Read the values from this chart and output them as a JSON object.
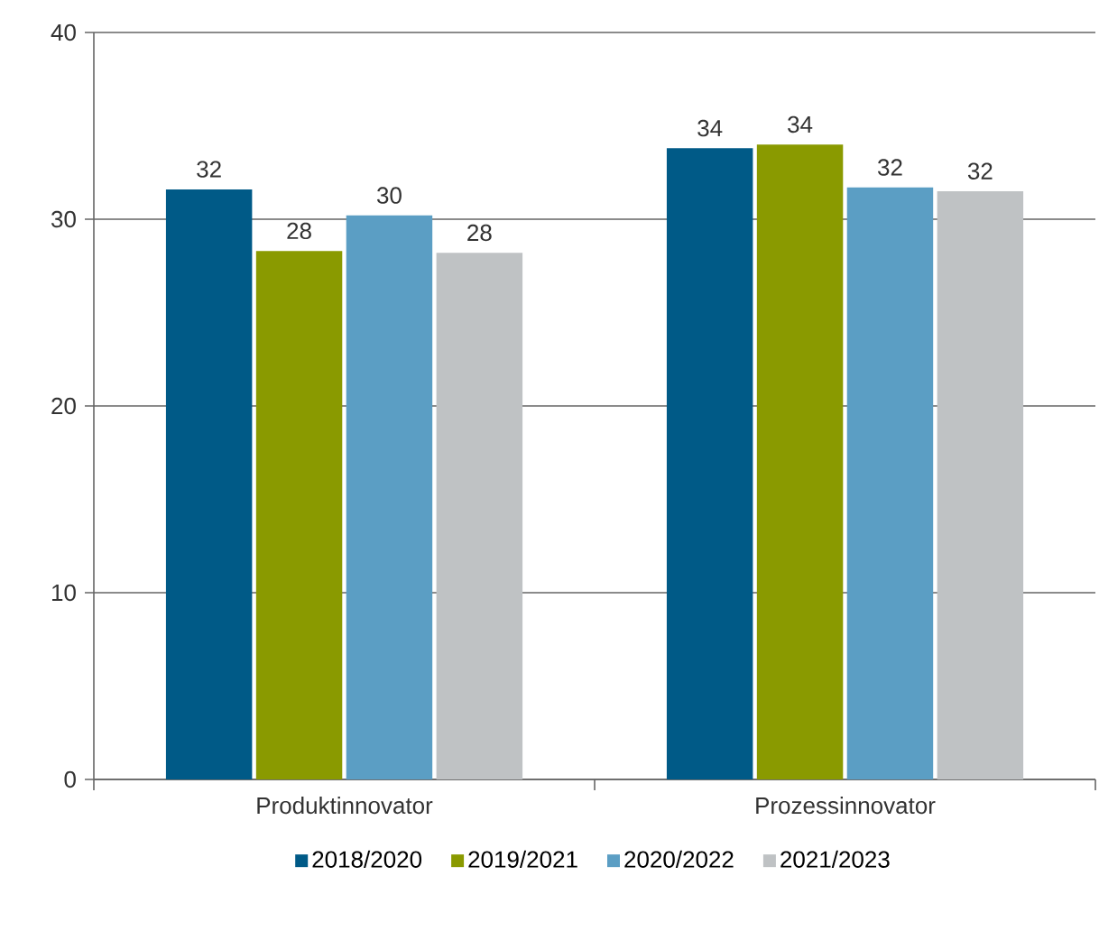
{
  "chart_data": {
    "type": "bar",
    "categories": [
      "Produktinnovator",
      "Prozessinnovator"
    ],
    "series": [
      {
        "name": "2018/2020",
        "color": "#005a87",
        "values": [
          31.6,
          33.8
        ],
        "value_labels": [
          "32",
          "34"
        ]
      },
      {
        "name": "2019/2021",
        "color": "#8a9a00",
        "values": [
          28.3,
          34.0
        ],
        "value_labels": [
          "28",
          "34"
        ]
      },
      {
        "name": "2020/2022",
        "color": "#5b9ec4",
        "values": [
          30.2,
          31.7
        ],
        "value_labels": [
          "30",
          "32"
        ]
      },
      {
        "name": "2021/2023",
        "color": "#bfc2c4",
        "values": [
          28.2,
          31.5
        ],
        "value_labels": [
          "28",
          "32"
        ]
      }
    ],
    "ylim": [
      0,
      40
    ],
    "yticks": [
      0,
      10,
      20,
      30,
      40
    ],
    "grid": "y",
    "legend": "bottom"
  }
}
